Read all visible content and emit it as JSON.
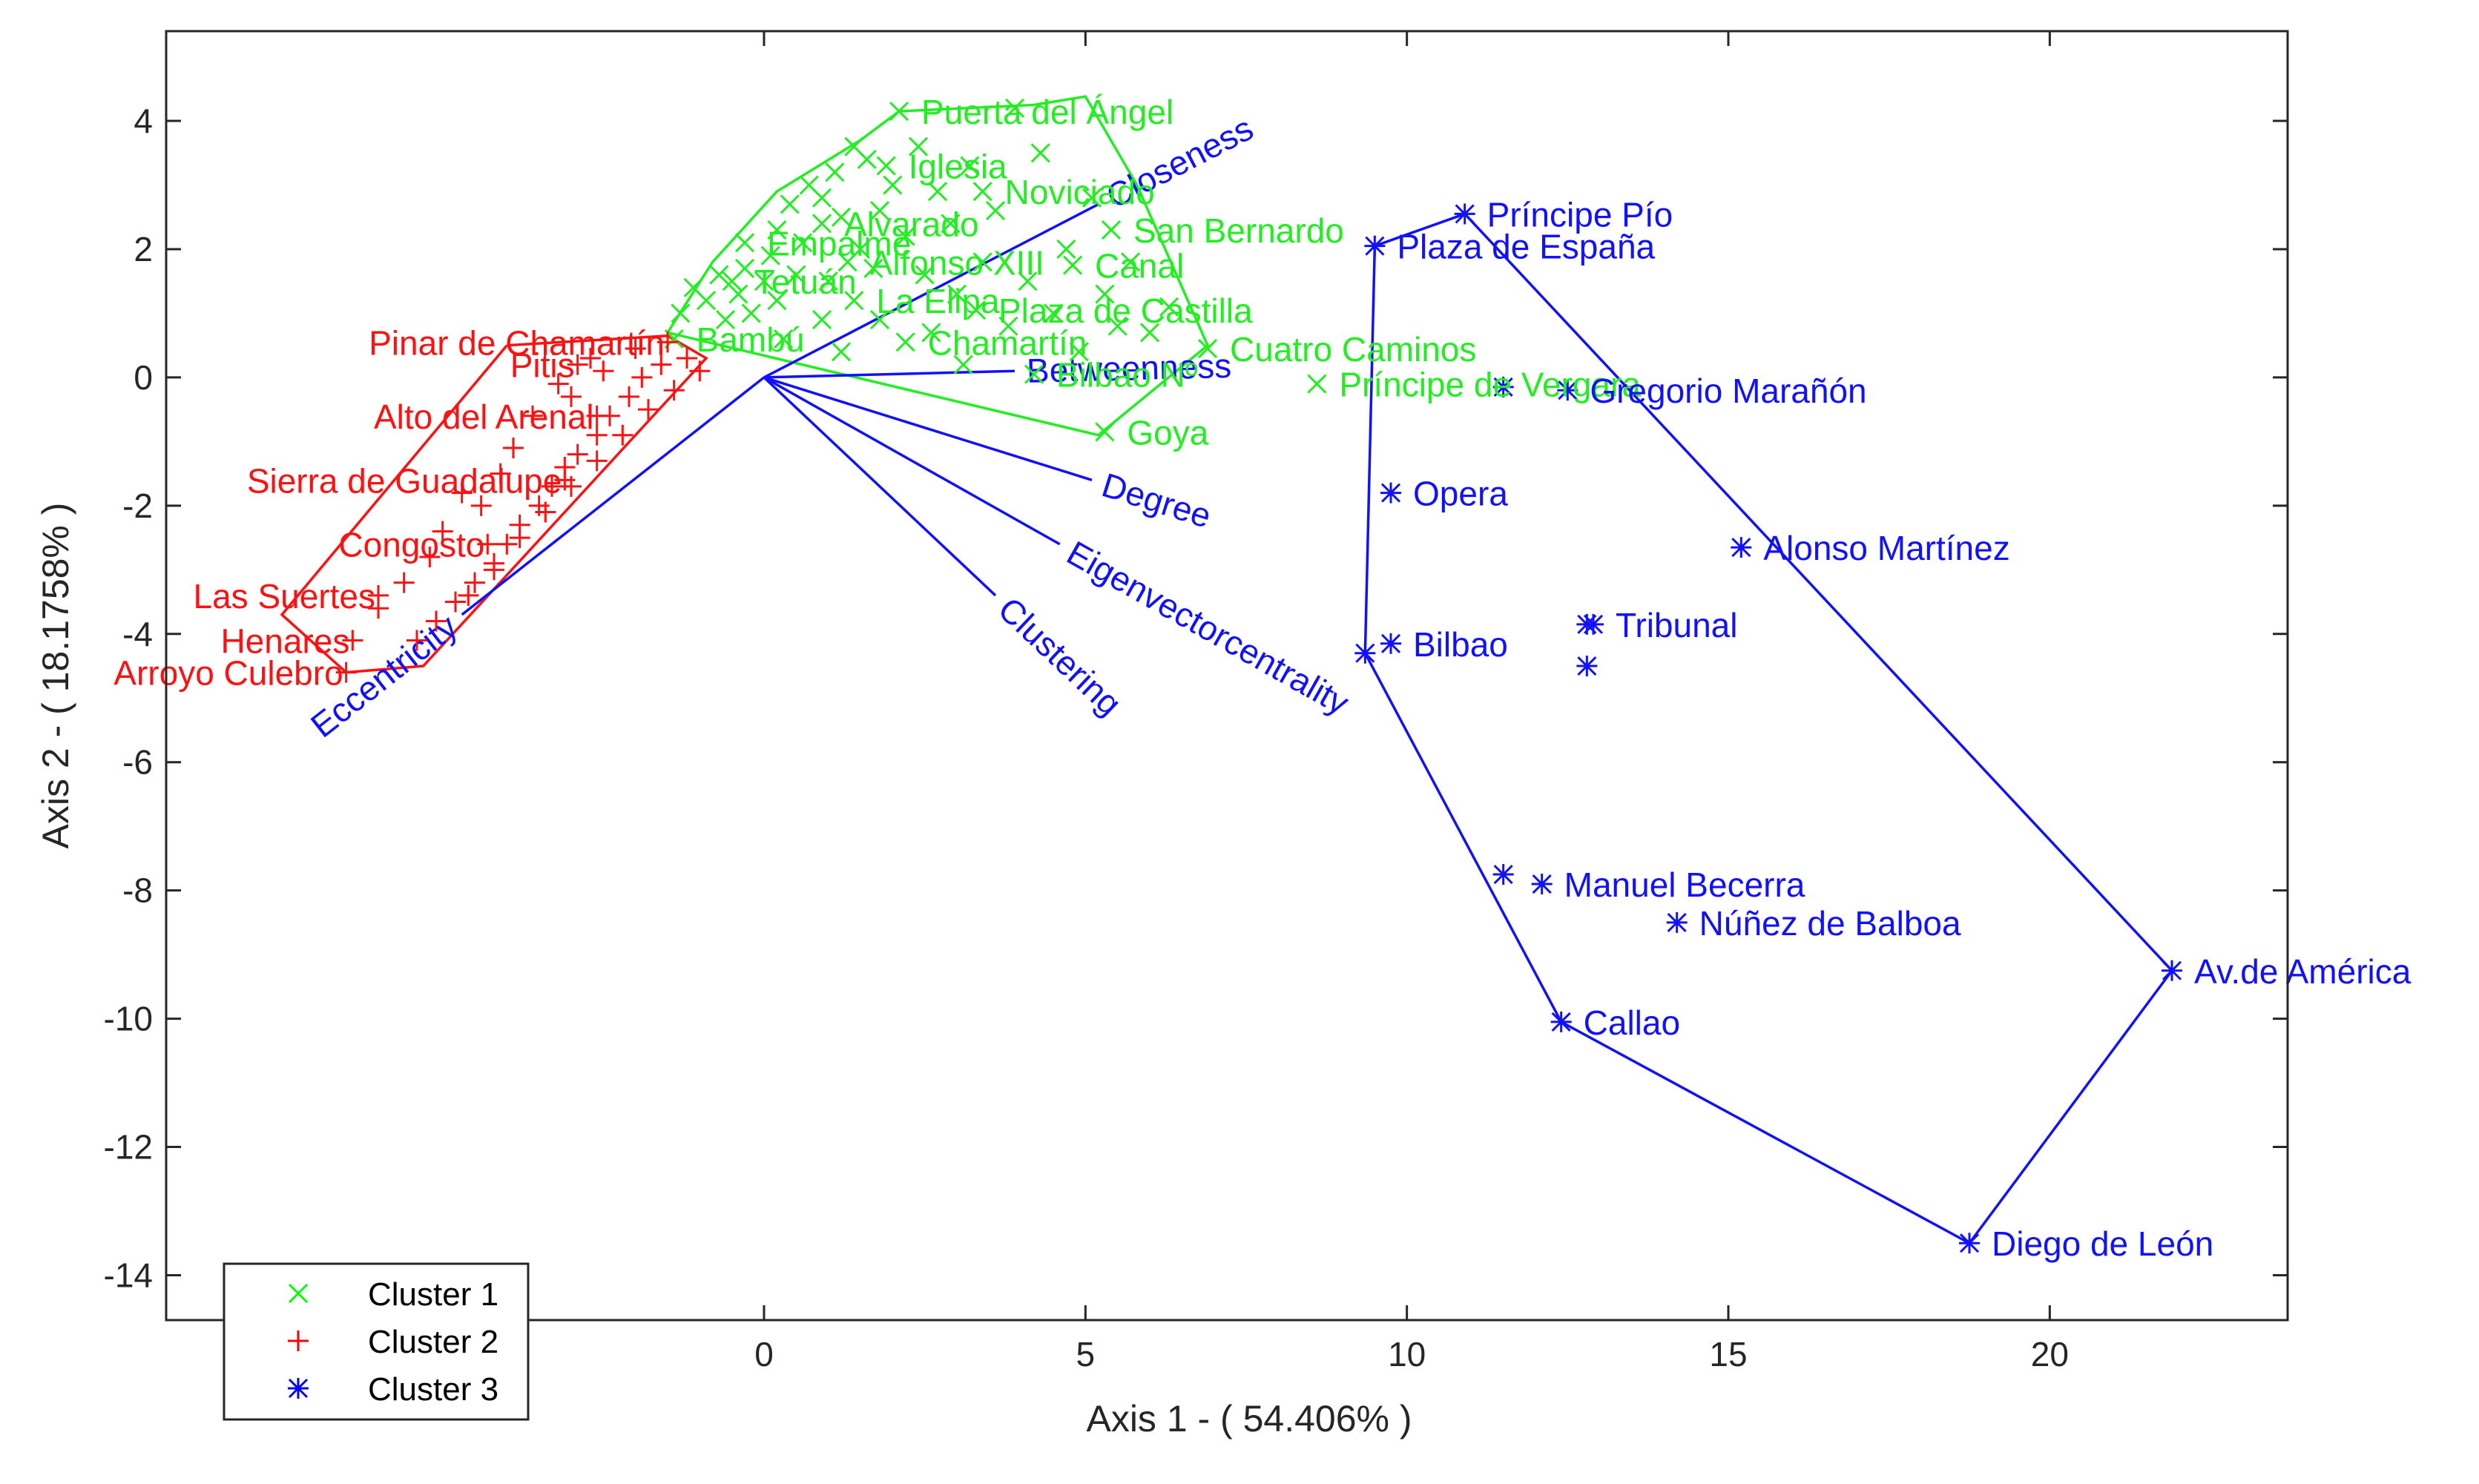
{
  "chart_data": {
    "type": "scatter",
    "xlabel": "Axis 1 - ( 54.406% )",
    "ylabel": "Axis 2 - ( 18.1758% )",
    "xlim": [
      -9.3,
      23.7
    ],
    "ylim": [
      -14.7,
      5.4
    ],
    "xticks": [
      0,
      5,
      10,
      15,
      20
    ],
    "yticks": [
      4,
      2,
      0,
      -2,
      -4,
      -6,
      -8,
      -10,
      -12,
      -14
    ],
    "legend": {
      "position": "bottom-left",
      "entries": [
        {
          "label": "Cluster 1",
          "marker": "x",
          "color": "#00ff00"
        },
        {
          "label": "Cluster 2",
          "marker": "+",
          "color": "#ff0000"
        },
        {
          "label": "Cluster 3",
          "marker": "*",
          "color": "#0000ff"
        }
      ]
    },
    "clusters": [
      {
        "name": "Cluster 1",
        "color": "#22ee22",
        "marker": "x",
        "labeled_points": [
          {
            "label": "Puerta del Ángel",
            "x": 2.1,
            "y": 4.15
          },
          {
            "label": "Iglesia",
            "x": 1.9,
            "y": 3.3
          },
          {
            "label": "Noviciado",
            "x": 3.4,
            "y": 2.9
          },
          {
            "label": "Alvarado",
            "x": 0.9,
            "y": 2.4
          },
          {
            "label": "San Bernardo",
            "x": 5.4,
            "y": 2.3
          },
          {
            "label": "Empalme",
            "x": -0.3,
            "y": 2.1
          },
          {
            "label": "Alfonso XIII",
            "x": 1.3,
            "y": 1.8
          },
          {
            "label": "Canal",
            "x": 4.8,
            "y": 1.75
          },
          {
            "label": "Tetuán",
            "x": -0.5,
            "y": 1.5
          },
          {
            "label": "La Elipa",
            "x": 1.4,
            "y": 1.2
          },
          {
            "label": "Plaza de Castilla",
            "x": 3.3,
            "y": 1.05
          },
          {
            "label": "Bambú",
            "x": -1.4,
            "y": 0.6
          },
          {
            "label": "Chamartín",
            "x": 2.2,
            "y": 0.55
          },
          {
            "label": "Cuatro Caminos",
            "x": 6.9,
            "y": 0.45
          },
          {
            "label": "Bilbao Nº",
            "x": 4.2,
            "y": 0.05
          },
          {
            "label": "Príncipe de Vergara",
            "x": 8.6,
            "y": -0.1
          },
          {
            "label": "Goya",
            "x": 5.3,
            "y": -0.85
          }
        ],
        "hull": [
          [
            -1.5,
            0.7
          ],
          [
            -0.8,
            1.8
          ],
          [
            0.2,
            2.9
          ],
          [
            1.5,
            3.7
          ],
          [
            2.1,
            4.15
          ],
          [
            4.2,
            4.25
          ],
          [
            5.0,
            4.38
          ],
          [
            5.8,
            3.0
          ],
          [
            6.9,
            0.5
          ],
          [
            5.2,
            -0.9
          ],
          [
            -1.5,
            0.7
          ]
        ],
        "unlabeled_points": [
          [
            -1.3,
            1.0
          ],
          [
            -1.1,
            1.4
          ],
          [
            -0.9,
            1.2
          ],
          [
            -0.7,
            1.6
          ],
          [
            -0.6,
            0.9
          ],
          [
            -0.4,
            1.3
          ],
          [
            -0.3,
            1.7
          ],
          [
            -0.2,
            1.0
          ],
          [
            0.0,
            1.5
          ],
          [
            0.1,
            1.9
          ],
          [
            0.2,
            2.3
          ],
          [
            0.2,
            1.2
          ],
          [
            0.4,
            2.7
          ],
          [
            0.5,
            1.6
          ],
          [
            0.6,
            2.1
          ],
          [
            0.7,
            3.0
          ],
          [
            0.9,
            2.8
          ],
          [
            1.0,
            1.5
          ],
          [
            1.1,
            3.2
          ],
          [
            1.2,
            2.5
          ],
          [
            1.4,
            3.6
          ],
          [
            1.5,
            2.0
          ],
          [
            1.6,
            3.4
          ],
          [
            1.7,
            1.7
          ],
          [
            1.8,
            2.6
          ],
          [
            2.0,
            3.0
          ],
          [
            2.2,
            2.2
          ],
          [
            2.4,
            3.6
          ],
          [
            2.5,
            1.6
          ],
          [
            2.7,
            2.9
          ],
          [
            2.9,
            2.4
          ],
          [
            3.0,
            1.3
          ],
          [
            3.2,
            3.3
          ],
          [
            3.4,
            1.8
          ],
          [
            3.6,
            2.6
          ],
          [
            3.8,
            0.8
          ],
          [
            3.9,
            4.2
          ],
          [
            4.1,
            1.5
          ],
          [
            4.3,
            3.5
          ],
          [
            4.5,
            1.0
          ],
          [
            4.7,
            2.0
          ],
          [
            4.9,
            0.4
          ],
          [
            5.1,
            2.8
          ],
          [
            5.3,
            1.3
          ],
          [
            5.5,
            0.8
          ],
          [
            5.7,
            1.8
          ],
          [
            6.0,
            0.7
          ],
          [
            6.3,
            1.1
          ],
          [
            0.3,
            0.6
          ],
          [
            0.9,
            0.9
          ],
          [
            1.8,
            0.9
          ],
          [
            2.6,
            0.7
          ],
          [
            3.1,
            0.2
          ],
          [
            1.2,
            0.4
          ]
        ]
      },
      {
        "name": "Cluster 2",
        "color": "#ff1111",
        "marker": "+",
        "labeled_points": [
          {
            "label": "Pinar de Chamartín",
            "x": -1.5,
            "y": 0.55
          },
          {
            "label": "Pitis",
            "x": -2.9,
            "y": 0.2
          },
          {
            "label": "Alto del Arenal",
            "x": -2.6,
            "y": -0.6
          },
          {
            "label": "Sierra de Guadalupe",
            "x": -3.1,
            "y": -1.6
          },
          {
            "label": "Congosto",
            "x": -4.3,
            "y": -2.6
          },
          {
            "label": "Las Suertes",
            "x": -6.0,
            "y": -3.4
          },
          {
            "label": "Henares",
            "x": -6.4,
            "y": -4.1
          },
          {
            "label": "Arroyo Culebro",
            "x": -6.5,
            "y": -4.6
          }
        ],
        "hull": [
          [
            -4.0,
            0.5
          ],
          [
            -1.5,
            0.65
          ],
          [
            -0.9,
            0.3
          ],
          [
            -5.3,
            -4.5
          ],
          [
            -6.5,
            -4.6
          ],
          [
            -7.5,
            -3.7
          ],
          [
            -4.0,
            0.5
          ]
        ],
        "unlabeled_points": [
          [
            -1.2,
            0.3
          ],
          [
            -1.6,
            0.2
          ],
          [
            -1.9,
            0.0
          ],
          [
            -2.1,
            -0.3
          ],
          [
            -2.4,
            -0.6
          ],
          [
            -2.6,
            -0.9
          ],
          [
            -2.9,
            -1.2
          ],
          [
            -3.1,
            -1.4
          ],
          [
            -3.3,
            -1.7
          ],
          [
            -3.5,
            -2.0
          ],
          [
            -3.8,
            -2.3
          ],
          [
            -4.0,
            -2.6
          ],
          [
            -4.2,
            -2.9
          ],
          [
            -4.5,
            -3.2
          ],
          [
            -4.8,
            -3.5
          ],
          [
            -5.1,
            -3.8
          ],
          [
            -5.4,
            -4.1
          ],
          [
            -1.4,
            -0.2
          ],
          [
            -1.8,
            -0.5
          ],
          [
            -2.2,
            -0.9
          ],
          [
            -2.6,
            -1.3
          ],
          [
            -3.0,
            -1.7
          ],
          [
            -3.4,
            -2.1
          ],
          [
            -3.8,
            -2.5
          ],
          [
            -4.2,
            -3.0
          ],
          [
            -4.6,
            -3.4
          ],
          [
            -1.0,
            0.1
          ],
          [
            -2.7,
            0.3
          ],
          [
            -3.2,
            -0.1
          ],
          [
            -3.6,
            -0.6
          ],
          [
            -3.9,
            -1.1
          ],
          [
            -4.1,
            -1.5
          ],
          [
            -4.4,
            -2.0
          ],
          [
            -5.2,
            -2.8
          ],
          [
            -5.6,
            -3.2
          ],
          [
            -6.0,
            -3.6
          ],
          [
            -2.0,
            0.45
          ],
          [
            -2.5,
            0.1
          ],
          [
            -3.0,
            -0.3
          ],
          [
            -4.7,
            -1.8
          ],
          [
            -5.0,
            -2.4
          ]
        ]
      },
      {
        "name": "Cluster 3",
        "color": "#1111ff",
        "marker": "*",
        "labeled_points": [
          {
            "label": "Príncipe Pío",
            "x": 10.9,
            "y": 2.55
          },
          {
            "label": "Plaza de España",
            "x": 9.5,
            "y": 2.05
          },
          {
            "label": "Gregorio Marañón",
            "x": 12.5,
            "y": -0.2
          },
          {
            "label": "Opera",
            "x": 9.75,
            "y": -1.8
          },
          {
            "label": "Alonso Martínez",
            "x": 15.2,
            "y": -2.65
          },
          {
            "label": "Tribunal",
            "x": 12.9,
            "y": -3.85
          },
          {
            "label": "Bilbao",
            "x": 9.75,
            "y": -4.15
          },
          {
            "label": "Manuel Becerra",
            "x": 12.1,
            "y": -7.9
          },
          {
            "label": "Núñez de Balboa",
            "x": 14.2,
            "y": -8.5
          },
          {
            "label": "Av.de América",
            "x": 21.9,
            "y": -9.25
          },
          {
            "label": "Callao",
            "x": 12.4,
            "y": -10.05
          },
          {
            "label": "Diego de León",
            "x": 18.75,
            "y": -13.5
          }
        ],
        "hull": [
          [
            9.5,
            2.05
          ],
          [
            10.9,
            2.55
          ],
          [
            21.9,
            -9.25
          ],
          [
            18.75,
            -13.5
          ],
          [
            12.4,
            -10.05
          ],
          [
            9.35,
            -4.3
          ],
          [
            9.5,
            2.05
          ]
        ],
        "unlabeled_points": [
          [
            11.5,
            -0.15
          ],
          [
            12.8,
            -3.85
          ],
          [
            12.8,
            -4.5
          ],
          [
            11.5,
            -7.75
          ],
          [
            9.35,
            -4.3
          ]
        ]
      }
    ],
    "vectors": [
      {
        "label": "Closeness",
        "x": 5.2,
        "y": 2.7
      },
      {
        "label": "Betweenness",
        "x": 3.9,
        "y": 0.1
      },
      {
        "label": "Degree",
        "x": 5.1,
        "y": -1.6
      },
      {
        "label": "Eigenvectorcentrality",
        "x": 4.6,
        "y": -2.6
      },
      {
        "label": "Clustering",
        "x": 3.6,
        "y": -3.4
      },
      {
        "label": "Eccentricity",
        "x": -4.7,
        "y": -3.7
      }
    ]
  }
}
